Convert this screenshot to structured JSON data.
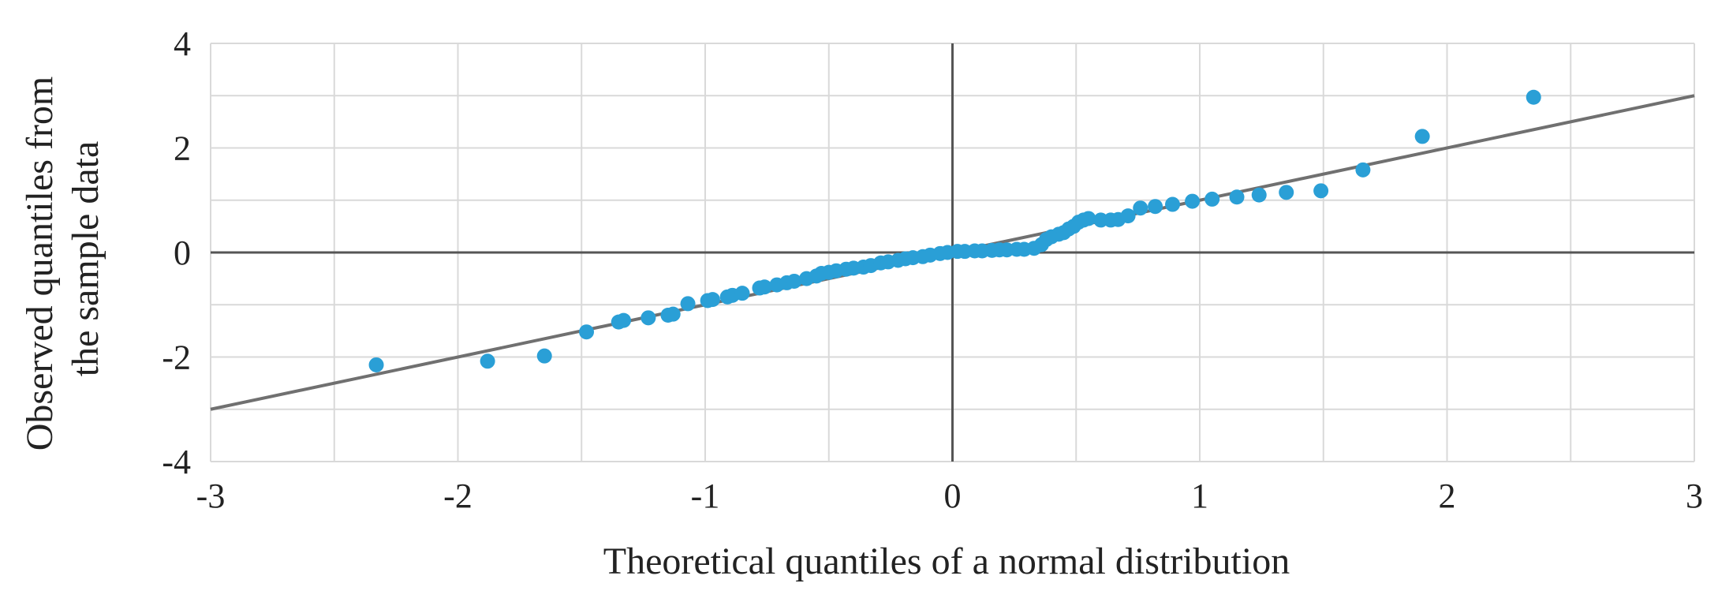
{
  "chart_data": {
    "type": "scatter",
    "xlabel": "Theoretical quantiles of a normal distribution",
    "ylabel_lines": [
      "Observed quantiles from",
      "the sample data"
    ],
    "xlim": [
      -3,
      3
    ],
    "ylim": [
      -4,
      4
    ],
    "x_ticks": [
      "-3",
      "-2",
      "-1",
      "0",
      "1",
      "2",
      "3"
    ],
    "y_ticks": [
      "4",
      "2",
      "0",
      "-2",
      "-4"
    ],
    "x_major_step": 1,
    "x_minor_step": 0.5,
    "y_major_step": 2,
    "y_minor_step": 1,
    "grid": true,
    "colors": {
      "points": "#2a9fd6",
      "reference_line": "#707070",
      "grid": "#d9d9d9",
      "zero_axes": "#555555"
    },
    "reference_line": {
      "x": [
        -3,
        3
      ],
      "y": [
        -3,
        3
      ]
    },
    "series": [
      {
        "points": [
          [
            -2.33,
            -2.15
          ],
          [
            -1.88,
            -2.08
          ],
          [
            -1.65,
            -1.98
          ],
          [
            -1.48,
            -1.52
          ],
          [
            -1.35,
            -1.33
          ],
          [
            -1.33,
            -1.3
          ],
          [
            -1.23,
            -1.25
          ],
          [
            -1.15,
            -1.2
          ],
          [
            -1.13,
            -1.18
          ],
          [
            -1.07,
            -0.98
          ],
          [
            -0.99,
            -0.92
          ],
          [
            -0.97,
            -0.9
          ],
          [
            -0.91,
            -0.85
          ],
          [
            -0.89,
            -0.82
          ],
          [
            -0.85,
            -0.78
          ],
          [
            -0.78,
            -0.68
          ],
          [
            -0.76,
            -0.66
          ],
          [
            -0.71,
            -0.62
          ],
          [
            -0.67,
            -0.58
          ],
          [
            -0.64,
            -0.55
          ],
          [
            -0.59,
            -0.5
          ],
          [
            -0.55,
            -0.45
          ],
          [
            -0.53,
            -0.4
          ],
          [
            -0.5,
            -0.38
          ],
          [
            -0.47,
            -0.35
          ],
          [
            -0.43,
            -0.32
          ],
          [
            -0.4,
            -0.3
          ],
          [
            -0.36,
            -0.28
          ],
          [
            -0.33,
            -0.25
          ],
          [
            -0.29,
            -0.2
          ],
          [
            -0.26,
            -0.18
          ],
          [
            -0.22,
            -0.15
          ],
          [
            -0.19,
            -0.12
          ],
          [
            -0.16,
            -0.1
          ],
          [
            -0.12,
            -0.08
          ],
          [
            -0.09,
            -0.05
          ],
          [
            -0.05,
            -0.02
          ],
          [
            -0.02,
            0.0
          ],
          [
            0.02,
            0.02
          ],
          [
            0.05,
            0.02
          ],
          [
            0.09,
            0.03
          ],
          [
            0.12,
            0.03
          ],
          [
            0.16,
            0.04
          ],
          [
            0.19,
            0.05
          ],
          [
            0.22,
            0.05
          ],
          [
            0.26,
            0.06
          ],
          [
            0.29,
            0.06
          ],
          [
            0.33,
            0.08
          ],
          [
            0.36,
            0.15
          ],
          [
            0.38,
            0.25
          ],
          [
            0.4,
            0.3
          ],
          [
            0.43,
            0.35
          ],
          [
            0.45,
            0.38
          ],
          [
            0.47,
            0.45
          ],
          [
            0.49,
            0.5
          ],
          [
            0.51,
            0.58
          ],
          [
            0.53,
            0.62
          ],
          [
            0.55,
            0.65
          ],
          [
            0.6,
            0.62
          ],
          [
            0.64,
            0.62
          ],
          [
            0.67,
            0.63
          ],
          [
            0.71,
            0.7
          ],
          [
            0.76,
            0.85
          ],
          [
            0.82,
            0.88
          ],
          [
            0.89,
            0.92
          ],
          [
            0.97,
            0.98
          ],
          [
            1.05,
            1.02
          ],
          [
            1.15,
            1.06
          ],
          [
            1.24,
            1.1
          ],
          [
            1.35,
            1.15
          ],
          [
            1.49,
            1.18
          ],
          [
            1.66,
            1.58
          ],
          [
            1.9,
            2.22
          ],
          [
            2.35,
            2.97
          ]
        ]
      }
    ]
  }
}
